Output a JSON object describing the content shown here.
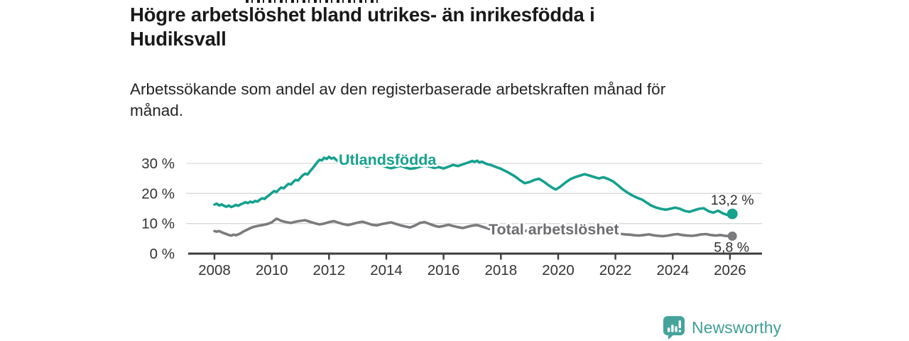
{
  "header": {
    "title_lines": [
      "Högre arbetslöshet bland utrikes- än inrikesfödda i",
      "Hudiksvall"
    ],
    "subtitle_lines": [
      "Arbetssökande som andel av den registerbaserade arbetskraften månad för",
      "månad."
    ]
  },
  "chart_data": {
    "type": "line",
    "title": "Högre arbetslöshet bland utrikes- än inrikesfödda i Hudiksvall",
    "subtitle": "Arbetssökande som andel av den registerbaserade arbetskraften månad för månad.",
    "x_axis": {
      "ticks": [
        2008,
        2010,
        2012,
        2014,
        2016,
        2018,
        2020,
        2022,
        2024,
        2026
      ],
      "range": [
        2007.1,
        2027.1
      ],
      "unit": "year"
    },
    "y_axis": {
      "ticks": [
        {
          "value": 30,
          "label": "30 %"
        },
        {
          "value": 20,
          "label": "20 %"
        },
        {
          "value": 10,
          "label": "10 %"
        },
        {
          "value": 0,
          "label": "0 %"
        }
      ],
      "gridlines": [
        10,
        20,
        30
      ],
      "range": [
        0,
        33
      ],
      "unit": "%"
    },
    "series": [
      {
        "name": "Utlandsfödda",
        "color": "#14a18e",
        "label_color": "#14a18e",
        "end_label": "13,2 %",
        "end_value": 13.2,
        "points": [
          [
            2008.0,
            16.3
          ],
          [
            2008.08,
            16.6
          ],
          [
            2008.17,
            16.0
          ],
          [
            2008.25,
            16.4
          ],
          [
            2008.33,
            15.9
          ],
          [
            2008.42,
            15.6
          ],
          [
            2008.5,
            16.0
          ],
          [
            2008.58,
            15.5
          ],
          [
            2008.67,
            15.8
          ],
          [
            2008.75,
            16.2
          ],
          [
            2008.83,
            15.9
          ],
          [
            2008.92,
            16.4
          ],
          [
            2009.0,
            16.7
          ],
          [
            2009.08,
            17.1
          ],
          [
            2009.17,
            16.8
          ],
          [
            2009.25,
            17.3
          ],
          [
            2009.33,
            17.0
          ],
          [
            2009.42,
            17.5
          ],
          [
            2009.5,
            17.3
          ],
          [
            2009.58,
            17.9
          ],
          [
            2009.67,
            18.4
          ],
          [
            2009.75,
            18.2
          ],
          [
            2009.83,
            18.9
          ],
          [
            2009.92,
            19.5
          ],
          [
            2010.0,
            20.2
          ],
          [
            2010.08,
            20.8
          ],
          [
            2010.17,
            20.5
          ],
          [
            2010.25,
            21.3
          ],
          [
            2010.33,
            22.0
          ],
          [
            2010.42,
            21.7
          ],
          [
            2010.5,
            22.5
          ],
          [
            2010.58,
            23.2
          ],
          [
            2010.67,
            23.0
          ],
          [
            2010.75,
            23.8
          ],
          [
            2010.83,
            24.5
          ],
          [
            2010.92,
            24.3
          ],
          [
            2011.0,
            25.2
          ],
          [
            2011.08,
            26.0
          ],
          [
            2011.17,
            26.6
          ],
          [
            2011.25,
            26.3
          ],
          [
            2011.33,
            27.3
          ],
          [
            2011.42,
            28.3
          ],
          [
            2011.5,
            29.3
          ],
          [
            2011.58,
            30.3
          ],
          [
            2011.67,
            31.2
          ],
          [
            2011.75,
            31.0
          ],
          [
            2011.83,
            31.9
          ],
          [
            2011.92,
            31.5
          ],
          [
            2012.0,
            32.2
          ],
          [
            2012.08,
            31.6
          ],
          [
            2012.17,
            31.9
          ],
          [
            2012.25,
            31.2
          ],
          [
            2012.33,
            30.6
          ],
          [
            2012.42,
            31.0
          ],
          [
            2012.5,
            30.4
          ],
          [
            2012.58,
            29.9
          ],
          [
            2012.67,
            30.4
          ],
          [
            2012.75,
            29.8
          ],
          [
            2012.83,
            30.2
          ],
          [
            2012.92,
            29.7
          ],
          [
            2013.0,
            30.1
          ],
          [
            2013.17,
            29.5
          ],
          [
            2013.33,
            28.9
          ],
          [
            2013.5,
            29.4
          ],
          [
            2013.67,
            29.9
          ],
          [
            2013.83,
            29.4
          ],
          [
            2014.0,
            28.8
          ],
          [
            2014.17,
            28.4
          ],
          [
            2014.33,
            28.8
          ],
          [
            2014.5,
            29.2
          ],
          [
            2014.67,
            28.6
          ],
          [
            2014.83,
            28.2
          ],
          [
            2015.0,
            28.4
          ],
          [
            2015.17,
            28.9
          ],
          [
            2015.33,
            29.3
          ],
          [
            2015.5,
            29.0
          ],
          [
            2015.67,
            28.5
          ],
          [
            2015.83,
            28.8
          ],
          [
            2016.0,
            28.3
          ],
          [
            2016.17,
            28.9
          ],
          [
            2016.33,
            29.5
          ],
          [
            2016.5,
            29.1
          ],
          [
            2016.67,
            29.7
          ],
          [
            2016.83,
            30.2
          ],
          [
            2017.0,
            30.8
          ],
          [
            2017.08,
            30.5
          ],
          [
            2017.17,
            30.9
          ],
          [
            2017.25,
            30.3
          ],
          [
            2017.33,
            30.6
          ],
          [
            2017.5,
            29.8
          ],
          [
            2017.67,
            29.4
          ],
          [
            2017.83,
            28.8
          ],
          [
            2018.0,
            28.2
          ],
          [
            2018.17,
            27.4
          ],
          [
            2018.33,
            26.6
          ],
          [
            2018.5,
            25.6
          ],
          [
            2018.67,
            24.4
          ],
          [
            2018.83,
            23.4
          ],
          [
            2019.0,
            23.8
          ],
          [
            2019.17,
            24.5
          ],
          [
            2019.33,
            24.9
          ],
          [
            2019.5,
            23.9
          ],
          [
            2019.67,
            22.7
          ],
          [
            2019.83,
            21.7
          ],
          [
            2019.92,
            21.3
          ],
          [
            2020.08,
            22.3
          ],
          [
            2020.25,
            23.6
          ],
          [
            2020.42,
            24.7
          ],
          [
            2020.58,
            25.4
          ],
          [
            2020.75,
            25.9
          ],
          [
            2020.92,
            26.4
          ],
          [
            2021.08,
            26.0
          ],
          [
            2021.25,
            25.5
          ],
          [
            2021.42,
            25.0
          ],
          [
            2021.58,
            25.4
          ],
          [
            2021.75,
            24.8
          ],
          [
            2021.92,
            24.0
          ],
          [
            2022.08,
            22.8
          ],
          [
            2022.25,
            21.4
          ],
          [
            2022.42,
            20.3
          ],
          [
            2022.58,
            19.4
          ],
          [
            2022.75,
            18.6
          ],
          [
            2022.92,
            18.0
          ],
          [
            2023.08,
            17.0
          ],
          [
            2023.25,
            16.0
          ],
          [
            2023.42,
            15.3
          ],
          [
            2023.58,
            14.9
          ],
          [
            2023.75,
            14.6
          ],
          [
            2023.92,
            14.9
          ],
          [
            2024.08,
            15.3
          ],
          [
            2024.25,
            14.9
          ],
          [
            2024.42,
            14.2
          ],
          [
            2024.58,
            13.9
          ],
          [
            2024.75,
            14.4
          ],
          [
            2024.92,
            14.9
          ],
          [
            2025.08,
            15.1
          ],
          [
            2025.25,
            14.1
          ],
          [
            2025.42,
            13.6
          ],
          [
            2025.58,
            14.3
          ],
          [
            2025.75,
            13.4
          ],
          [
            2025.92,
            12.8
          ],
          [
            2026.08,
            13.2
          ]
        ]
      },
      {
        "name": "Total arbetslöshet",
        "color": "#7b7b7e",
        "label_color": "#6d6d71",
        "end_label": "5,8 %",
        "end_value": 5.8,
        "points": [
          [
            2008.0,
            7.5
          ],
          [
            2008.08,
            7.3
          ],
          [
            2008.17,
            7.5
          ],
          [
            2008.25,
            7.1
          ],
          [
            2008.33,
            6.8
          ],
          [
            2008.42,
            6.5
          ],
          [
            2008.5,
            6.2
          ],
          [
            2008.58,
            6.0
          ],
          [
            2008.67,
            6.3
          ],
          [
            2008.75,
            6.1
          ],
          [
            2008.83,
            6.4
          ],
          [
            2008.92,
            6.8
          ],
          [
            2009.0,
            7.3
          ],
          [
            2009.17,
            8.1
          ],
          [
            2009.33,
            8.8
          ],
          [
            2009.5,
            9.2
          ],
          [
            2009.67,
            9.5
          ],
          [
            2009.83,
            9.8
          ],
          [
            2010.0,
            10.4
          ],
          [
            2010.08,
            11.0
          ],
          [
            2010.17,
            11.6
          ],
          [
            2010.25,
            11.3
          ],
          [
            2010.33,
            10.9
          ],
          [
            2010.5,
            10.5
          ],
          [
            2010.67,
            10.2
          ],
          [
            2010.83,
            10.6
          ],
          [
            2011.0,
            10.9
          ],
          [
            2011.17,
            11.1
          ],
          [
            2011.33,
            10.6
          ],
          [
            2011.5,
            10.1
          ],
          [
            2011.67,
            9.7
          ],
          [
            2011.83,
            10.0
          ],
          [
            2012.0,
            10.5
          ],
          [
            2012.17,
            10.8
          ],
          [
            2012.33,
            10.3
          ],
          [
            2012.5,
            9.8
          ],
          [
            2012.67,
            9.5
          ],
          [
            2012.83,
            9.9
          ],
          [
            2013.0,
            10.3
          ],
          [
            2013.17,
            10.6
          ],
          [
            2013.33,
            10.1
          ],
          [
            2013.5,
            9.6
          ],
          [
            2013.67,
            9.4
          ],
          [
            2013.83,
            9.8
          ],
          [
            2014.0,
            10.1
          ],
          [
            2014.17,
            10.4
          ],
          [
            2014.33,
            9.9
          ],
          [
            2014.5,
            9.4
          ],
          [
            2014.67,
            9.0
          ],
          [
            2014.83,
            8.7
          ],
          [
            2015.0,
            9.3
          ],
          [
            2015.17,
            10.2
          ],
          [
            2015.33,
            10.5
          ],
          [
            2015.5,
            9.9
          ],
          [
            2015.67,
            9.3
          ],
          [
            2015.83,
            8.9
          ],
          [
            2016.0,
            9.2
          ],
          [
            2016.17,
            9.6
          ],
          [
            2016.33,
            9.2
          ],
          [
            2016.5,
            8.8
          ],
          [
            2016.67,
            8.5
          ],
          [
            2016.83,
            8.9
          ],
          [
            2017.0,
            9.3
          ],
          [
            2017.17,
            9.5
          ],
          [
            2017.33,
            9.0
          ],
          [
            2017.5,
            8.5
          ],
          [
            2017.67,
            8.0
          ],
          [
            2017.83,
            7.8
          ],
          [
            2018.0,
            8.0
          ],
          [
            2018.17,
            8.3
          ],
          [
            2018.33,
            7.9
          ],
          [
            2018.5,
            7.6
          ],
          [
            2018.67,
            7.3
          ],
          [
            2018.83,
            7.5
          ],
          [
            2019.0,
            7.8
          ],
          [
            2019.17,
            8.0
          ],
          [
            2019.33,
            7.7
          ],
          [
            2019.5,
            7.4
          ],
          [
            2019.67,
            7.2
          ],
          [
            2019.83,
            7.4
          ],
          [
            2020.0,
            7.7
          ],
          [
            2020.17,
            8.2
          ],
          [
            2020.33,
            8.6
          ],
          [
            2020.5,
            8.4
          ],
          [
            2020.67,
            8.1
          ],
          [
            2020.83,
            8.3
          ],
          [
            2021.0,
            8.1
          ],
          [
            2021.17,
            7.9
          ],
          [
            2021.33,
            7.6
          ],
          [
            2021.5,
            7.3
          ],
          [
            2021.67,
            7.0
          ],
          [
            2021.83,
            6.9
          ],
          [
            2022.0,
            6.8
          ],
          [
            2022.17,
            6.6
          ],
          [
            2022.33,
            6.4
          ],
          [
            2022.5,
            6.3
          ],
          [
            2022.67,
            6.1
          ],
          [
            2022.83,
            6.0
          ],
          [
            2023.0,
            6.2
          ],
          [
            2023.17,
            6.4
          ],
          [
            2023.33,
            6.1
          ],
          [
            2023.5,
            5.9
          ],
          [
            2023.67,
            5.8
          ],
          [
            2023.83,
            6.0
          ],
          [
            2024.0,
            6.3
          ],
          [
            2024.17,
            6.5
          ],
          [
            2024.33,
            6.2
          ],
          [
            2024.5,
            6.0
          ],
          [
            2024.67,
            5.9
          ],
          [
            2024.83,
            6.1
          ],
          [
            2025.0,
            6.4
          ],
          [
            2025.17,
            6.5
          ],
          [
            2025.33,
            6.2
          ],
          [
            2025.5,
            6.0
          ],
          [
            2025.67,
            6.2
          ],
          [
            2025.83,
            5.9
          ],
          [
            2026.08,
            5.8
          ]
        ]
      }
    ]
  },
  "footer": {
    "brand": "Newsworthy"
  },
  "colors": {
    "accent_teal": "#14a18e",
    "series_gray": "#7b7b7e",
    "axis": "#3d3d3d",
    "gridline": "#d9d9d9",
    "logo_teal": "#44a49c",
    "text_dark": "#191919"
  }
}
